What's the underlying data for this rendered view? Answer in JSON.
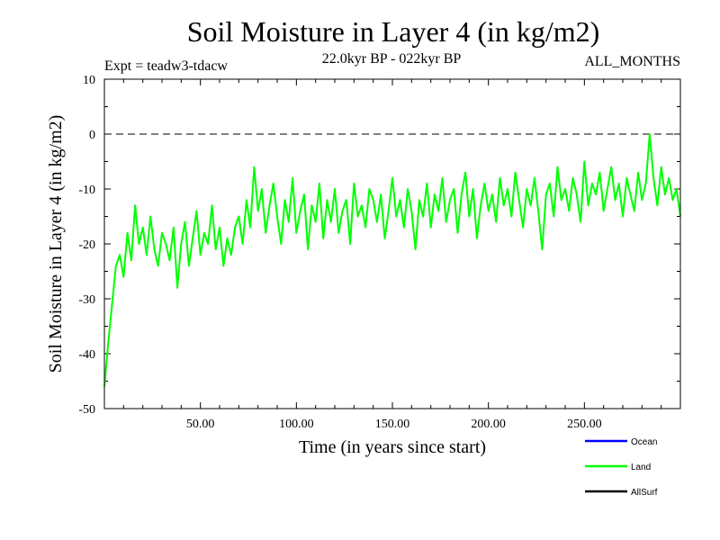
{
  "chart_data": {
    "type": "line",
    "title": "Soil Moisture in Layer 4 (in kg/m2)",
    "subtitle_left": "Expt = teadw3-tdacw",
    "subtitle_center": "22.0kyr BP - 022kyr BP",
    "subtitle_right": "ALL_MONTHS",
    "xlabel": "Time (in years since start)",
    "ylabel": "Soil Moisture in Layer 4 (in kg/m2)",
    "xlim": [
      0,
      300
    ],
    "ylim": [
      -50,
      10
    ],
    "x_ticks": [
      50,
      100,
      150,
      200,
      250
    ],
    "x_tick_labels": [
      "50.00",
      "100.00",
      "150.00",
      "200.00",
      "250.00"
    ],
    "y_ticks": [
      10,
      0,
      -10,
      -20,
      -30,
      -40,
      -50
    ],
    "y_tick_labels": [
      "10",
      "0",
      "-10",
      "-20",
      "-30",
      "-40",
      "-50"
    ],
    "reference_line": {
      "y": 0,
      "style": "dashed"
    },
    "legend": [
      {
        "name": "Ocean",
        "color": "#0000ff"
      },
      {
        "name": "Land",
        "color": "#00ff00"
      },
      {
        "name": "AllSurf",
        "color": "#000000"
      }
    ],
    "legend_position": "bottom-right",
    "series": [
      {
        "name": "Land",
        "color": "#00ff00",
        "x": [
          0,
          2,
          4,
          6,
          8,
          10,
          12,
          14,
          16,
          18,
          20,
          22,
          24,
          26,
          28,
          30,
          32,
          34,
          36,
          38,
          40,
          42,
          44,
          46,
          48,
          50,
          52,
          54,
          56,
          58,
          60,
          62,
          64,
          66,
          68,
          70,
          72,
          74,
          76,
          78,
          80,
          82,
          84,
          86,
          88,
          90,
          92,
          94,
          96,
          98,
          100,
          102,
          104,
          106,
          108,
          110,
          112,
          114,
          116,
          118,
          120,
          122,
          124,
          126,
          128,
          130,
          132,
          134,
          136,
          138,
          140,
          142,
          144,
          146,
          148,
          150,
          152,
          154,
          156,
          158,
          160,
          162,
          164,
          166,
          168,
          170,
          172,
          174,
          176,
          178,
          180,
          182,
          184,
          186,
          188,
          190,
          192,
          194,
          196,
          198,
          200,
          202,
          204,
          206,
          208,
          210,
          212,
          214,
          216,
          218,
          220,
          222,
          224,
          226,
          228,
          230,
          232,
          234,
          236,
          238,
          240,
          242,
          244,
          246,
          248,
          250,
          252,
          254,
          256,
          258,
          260,
          262,
          264,
          266,
          268,
          270,
          272,
          274,
          276,
          278,
          280,
          282,
          284,
          286,
          288,
          290,
          292,
          294,
          296,
          298,
          300
        ],
        "values": [
          -46,
          -38,
          -31,
          -24,
          -22,
          -26,
          -18,
          -23,
          -13,
          -20,
          -17,
          -22,
          -15,
          -21,
          -24,
          -18,
          -20,
          -23,
          -17,
          -28,
          -20,
          -16,
          -24,
          -19,
          -14,
          -22,
          -18,
          -20,
          -13,
          -21,
          -17,
          -24,
          -19,
          -22,
          -17,
          -15,
          -20,
          -12,
          -17,
          -6,
          -14,
          -10,
          -18,
          -13,
          -9,
          -15,
          -20,
          -12,
          -16,
          -8,
          -18,
          -14,
          -11,
          -21,
          -13,
          -16,
          -9,
          -19,
          -12,
          -16,
          -10,
          -18,
          -14,
          -12,
          -20,
          -9,
          -15,
          -13,
          -17,
          -10,
          -12,
          -16,
          -11,
          -19,
          -14,
          -8,
          -15,
          -12,
          -17,
          -10,
          -14,
          -21,
          -12,
          -15,
          -9,
          -17,
          -11,
          -14,
          -8,
          -16,
          -12,
          -10,
          -18,
          -11,
          -7,
          -15,
          -10,
          -19,
          -13,
          -9,
          -14,
          -11,
          -16,
          -8,
          -13,
          -10,
          -15,
          -7,
          -12,
          -17,
          -10,
          -13,
          -8,
          -14,
          -21,
          -11,
          -9,
          -15,
          -6,
          -12,
          -10,
          -14,
          -8,
          -11,
          -16,
          -5,
          -13,
          -9,
          -11,
          -7,
          -14,
          -10,
          -6,
          -12,
          -9,
          -15,
          -8,
          -11,
          -14,
          -7,
          -12,
          -9,
          0,
          -8,
          -13,
          -6,
          -11,
          -8,
          -12,
          -10,
          -15
        ]
      }
    ]
  }
}
